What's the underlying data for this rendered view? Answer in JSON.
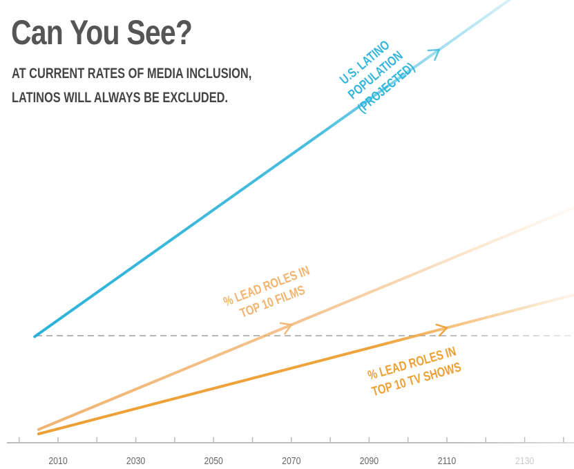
{
  "header": {
    "title": "Can You See?",
    "subtitle_line1": "AT CURRENT RATES OF MEDIA INCLUSION,",
    "subtitle_line2": "LATINOS WILL ALWAYS BE EXCLUDED."
  },
  "colors": {
    "population": "#29b2d9",
    "films": "#f2b470",
    "tv": "#eda034",
    "dashed": "#9a9a9a",
    "axis": "#bbbbbb"
  },
  "chart_data": {
    "type": "line",
    "x_ticks": [
      "2010",
      "2030",
      "2050",
      "2070",
      "2090",
      "2110",
      "2130"
    ],
    "x_domain": [
      2010,
      2130
    ],
    "y_domain": [
      0,
      100
    ],
    "grid": false,
    "dashed_reference": {
      "value": 28
    },
    "series": [
      {
        "name": "U.S. LATINO POPULATION (PROJECTED)",
        "label_lines": [
          "U.S. LATINO",
          "POPULATION",
          "(PROJECTED)"
        ],
        "color": "#29b2d9",
        "points": [
          [
            2004,
            24
          ],
          [
            2145,
            112
          ]
        ],
        "arrow_at": 2108
      },
      {
        "name": "% LEAD ROLES IN TOP 10 FILMS",
        "label_lines": [
          "% LEAD ROLES IN",
          "TOP 10 FILMS"
        ],
        "color": "#f2b470",
        "points": [
          [
            2005,
            3
          ],
          [
            2145,
            54
          ]
        ],
        "arrow_at": 2070
      },
      {
        "name": "% LEAD ROLES IN TOP 10 TV SHOWS",
        "label_lines": [
          "% LEAD ROLES IN",
          "TOP 10 TV SHOWS"
        ],
        "color": "#eda034",
        "points": [
          [
            2005,
            2
          ],
          [
            2145,
            34
          ]
        ],
        "arrow_at": 2110
      }
    ]
  }
}
